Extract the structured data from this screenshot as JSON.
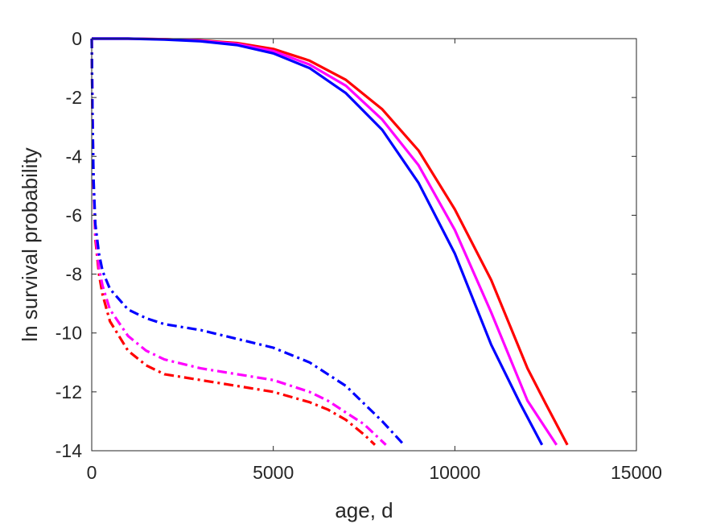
{
  "chart_data": {
    "type": "line",
    "title": "",
    "xlabel": "age, d",
    "ylabel": "ln survival probability",
    "xlim": [
      0,
      15000
    ],
    "ylim": [
      -14,
      0
    ],
    "xticks": [
      0,
      5000,
      10000,
      15000
    ],
    "yticks": [
      0,
      -2,
      -4,
      -6,
      -8,
      -10,
      -12,
      -14
    ],
    "xtick_labels": [
      "0",
      "5000",
      "10000",
      "15000"
    ],
    "ytick_labels": [
      "0",
      "-2",
      "-4",
      "-6",
      "-8",
      "-10",
      "-12",
      "-14"
    ],
    "grid": false,
    "legend": "none",
    "series": [
      {
        "color": "#ff0000",
        "style": "solid",
        "x": [
          0,
          1000,
          2000,
          3000,
          4000,
          5000,
          6000,
          7000,
          8000,
          9000,
          10000,
          11000,
          12000,
          12500,
          13100
        ],
        "y": [
          0,
          0,
          -0.02,
          -0.06,
          -0.15,
          -0.35,
          -0.75,
          -1.4,
          -2.4,
          -3.8,
          -5.8,
          -8.2,
          -11.2,
          -12.4,
          -13.8
        ]
      },
      {
        "color": "#ff00ff",
        "style": "solid",
        "x": [
          0,
          1000,
          2000,
          3000,
          4000,
          5000,
          6000,
          7000,
          8000,
          9000,
          10000,
          11000,
          12000,
          12800
        ],
        "y": [
          0,
          0,
          -0.02,
          -0.07,
          -0.18,
          -0.42,
          -0.88,
          -1.6,
          -2.75,
          -4.3,
          -6.5,
          -9.3,
          -12.3,
          -13.8
        ]
      },
      {
        "color": "#0000ff",
        "style": "solid",
        "x": [
          0,
          1000,
          2000,
          3000,
          4000,
          5000,
          6000,
          7000,
          8000,
          9000,
          10000,
          11000,
          11800,
          12400
        ],
        "y": [
          0,
          0,
          -0.03,
          -0.09,
          -0.22,
          -0.5,
          -1.0,
          -1.85,
          -3.1,
          -4.9,
          -7.3,
          -10.4,
          -12.4,
          -13.8
        ]
      },
      {
        "color": "#ff0000",
        "style": "dashdot",
        "x": [
          0,
          20,
          50,
          100,
          200,
          300,
          500,
          1000,
          1500,
          2000,
          3000,
          4000,
          5000,
          6000,
          6500,
          7000,
          7500,
          7800
        ],
        "y": [
          0,
          -2.5,
          -5.0,
          -6.8,
          -8.0,
          -8.7,
          -9.6,
          -10.6,
          -11.1,
          -11.4,
          -11.6,
          -11.8,
          -12.0,
          -12.35,
          -12.6,
          -12.95,
          -13.45,
          -13.8
        ]
      },
      {
        "color": "#ff00ff",
        "style": "dashdot",
        "x": [
          0,
          20,
          50,
          100,
          200,
          300,
          500,
          1000,
          1500,
          2000,
          3000,
          4000,
          5000,
          6000,
          6500,
          7000,
          7500,
          8100
        ],
        "y": [
          0,
          -2.5,
          -5.0,
          -6.6,
          -7.8,
          -8.4,
          -9.2,
          -10.1,
          -10.6,
          -10.9,
          -11.2,
          -11.4,
          -11.6,
          -12.0,
          -12.3,
          -12.7,
          -13.1,
          -13.8
        ]
      },
      {
        "color": "#0000ff",
        "style": "dashdot",
        "x": [
          0,
          20,
          50,
          100,
          200,
          300,
          500,
          1000,
          1500,
          2000,
          3000,
          4000,
          5000,
          6000,
          7000,
          7500,
          8000,
          8600
        ],
        "y": [
          0,
          -2.5,
          -4.8,
          -6.3,
          -7.3,
          -7.9,
          -8.5,
          -9.2,
          -9.5,
          -9.7,
          -9.9,
          -10.2,
          -10.5,
          -11.0,
          -11.8,
          -12.4,
          -13.0,
          -13.8
        ]
      }
    ]
  }
}
